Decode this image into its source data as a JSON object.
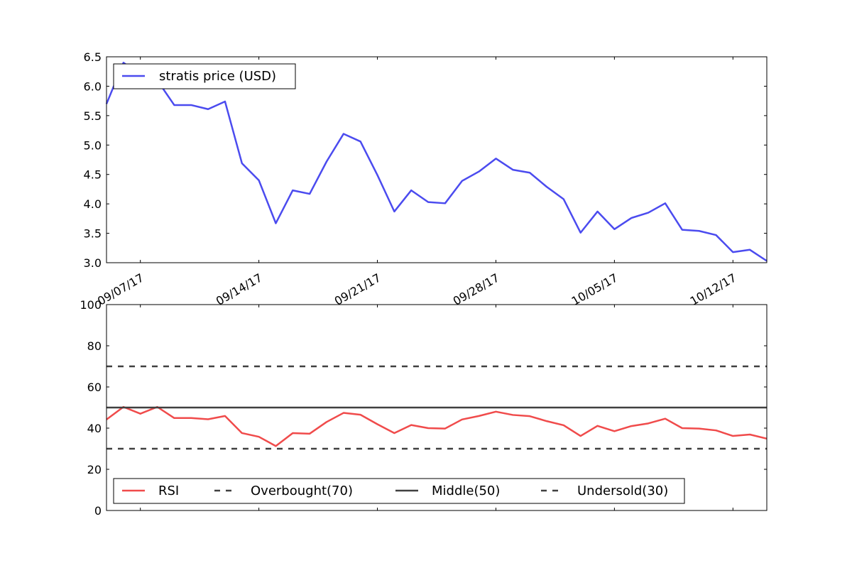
{
  "chart_data": [
    {
      "type": "line",
      "title": "",
      "xlabel": "",
      "ylabel": "",
      "ylim": [
        3.0,
        6.5
      ],
      "x": [
        "09/05/17",
        "09/06/17",
        "09/07/17",
        "09/08/17",
        "09/09/17",
        "09/10/17",
        "09/11/17",
        "09/12/17",
        "09/13/17",
        "09/14/17",
        "09/15/17",
        "09/16/17",
        "09/17/17",
        "09/18/17",
        "09/19/17",
        "09/20/17",
        "09/21/17",
        "09/22/17",
        "09/23/17",
        "09/24/17",
        "09/25/17",
        "09/26/17",
        "09/27/17",
        "09/28/17",
        "09/29/17",
        "09/30/17",
        "10/01/17",
        "10/02/17",
        "10/03/17",
        "10/04/17",
        "10/05/17",
        "10/06/17",
        "10/07/17",
        "10/08/17",
        "10/09/17",
        "10/10/17",
        "10/11/17",
        "10/12/17",
        "10/13/17",
        "10/14/17"
      ],
      "xticks": [
        "09/07/17",
        "09/14/17",
        "09/21/17",
        "09/28/17",
        "10/05/17",
        "10/12/17"
      ],
      "yticks": [
        "3.0",
        "3.5",
        "4.0",
        "4.5",
        "5.0",
        "5.5",
        "6.0",
        "6.5"
      ],
      "series": [
        {
          "name": "stratis price (USD)",
          "color": "#4b4bef",
          "values": [
            5.7,
            6.4,
            6.2,
            6.1,
            5.68,
            5.68,
            5.61,
            5.74,
            4.69,
            4.4,
            3.67,
            4.23,
            4.17,
            4.72,
            5.19,
            5.06,
            4.49,
            3.87,
            4.23,
            4.03,
            4.01,
            4.39,
            4.55,
            4.77,
            4.58,
            4.53,
            4.29,
            4.08,
            3.51,
            3.87,
            3.57,
            3.76,
            3.85,
            4.01,
            3.56,
            3.54,
            3.47,
            3.18,
            3.22,
            3.03
          ]
        }
      ],
      "legend": "upper-left",
      "grid": false
    },
    {
      "type": "line",
      "title": "",
      "xlabel": "",
      "ylabel": "",
      "ylim": [
        0,
        100
      ],
      "yticks": [
        "0",
        "20",
        "40",
        "60",
        "80",
        "100"
      ],
      "series": [
        {
          "name": "RSI",
          "color": "#f04b4b",
          "style": "solid",
          "values": [
            44.2,
            50.3,
            47.0,
            50.3,
            44.9,
            44.9,
            44.3,
            45.9,
            37.6,
            35.8,
            31.3,
            37.6,
            37.3,
            43.0,
            47.4,
            46.5,
            41.9,
            37.6,
            41.5,
            40.0,
            39.8,
            44.2,
            45.9,
            48.0,
            46.4,
            45.8,
            43.4,
            41.4,
            36.2,
            41.1,
            38.5,
            41.0,
            42.3,
            44.6,
            40.0,
            39.8,
            38.9,
            36.2,
            36.9,
            34.9
          ]
        },
        {
          "name": "Overbought(70)",
          "color": "#404040",
          "style": "dashed",
          "constant": 70
        },
        {
          "name": "Middle(50)",
          "color": "#404040",
          "style": "solid",
          "constant": 50
        },
        {
          "name": "Undersold(30)",
          "color": "#404040",
          "style": "dashed",
          "constant": 30
        }
      ],
      "legend": "lower-left",
      "grid": false
    }
  ]
}
